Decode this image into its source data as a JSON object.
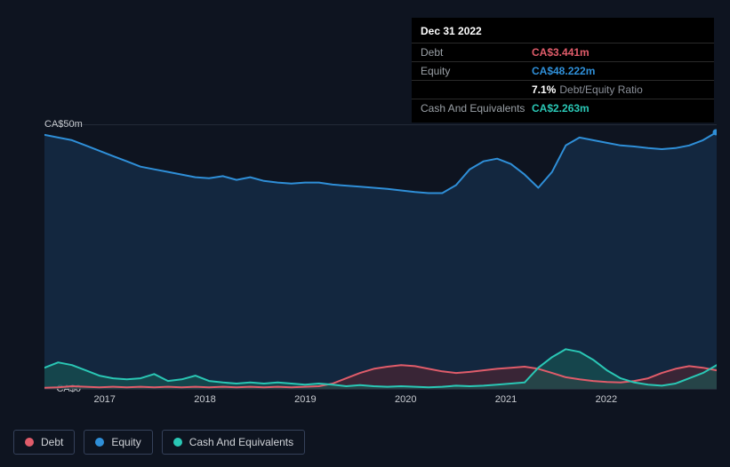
{
  "tooltip": {
    "date": "Dec 31 2022",
    "rows": {
      "debt": {
        "label": "Debt",
        "value": "CA$3.441m"
      },
      "equity": {
        "label": "Equity",
        "value": "CA$48.222m"
      },
      "ratio": {
        "label": "",
        "value": "7.1%",
        "suffix": "Debt/Equity Ratio"
      },
      "cash": {
        "label": "Cash And Equivalents",
        "value": "CA$2.263m"
      }
    }
  },
  "chart": {
    "type": "area",
    "background_color": "#0e1420",
    "grid_color": "#232a38",
    "ylim": [
      0,
      50
    ],
    "y_ticks": [
      {
        "v": 50,
        "label": "CA$50m"
      },
      {
        "v": 0,
        "label": "CA$0"
      }
    ],
    "x_years": [
      "2017",
      "2018",
      "2019",
      "2020",
      "2021",
      "2022"
    ],
    "n_points": 50,
    "series": {
      "equity": {
        "label": "Equity",
        "stroke": "#2f8fd8",
        "fill": "#17365a",
        "fill_opacity": 0.55,
        "line_width": 2,
        "data": [
          48,
          47.5,
          47,
          46,
          45,
          44,
          43,
          42,
          41.5,
          41,
          40.5,
          40,
          39.8,
          40.2,
          39.5,
          40,
          39.3,
          39,
          38.8,
          39,
          39,
          38.6,
          38.4,
          38.2,
          38,
          37.8,
          37.5,
          37.2,
          37,
          37,
          38.5,
          41.5,
          43,
          43.5,
          42.5,
          40.5,
          38,
          41,
          46,
          47.5,
          47,
          46.5,
          46,
          45.8,
          45.5,
          45.3,
          45.5,
          46,
          47,
          48.5
        ]
      },
      "cash": {
        "label": "Cash And Equivalents",
        "stroke": "#2ac7b5",
        "fill": "#175f58",
        "fill_opacity": 0.55,
        "line_width": 2,
        "data": [
          4,
          5,
          4.5,
          3.5,
          2.5,
          2,
          1.8,
          2,
          2.8,
          1.5,
          1.8,
          2.5,
          1.5,
          1.2,
          1,
          1.2,
          1,
          1.2,
          1,
          0.8,
          1,
          0.8,
          0.5,
          0.7,
          0.5,
          0.4,
          0.5,
          0.4,
          0.3,
          0.4,
          0.6,
          0.5,
          0.6,
          0.8,
          1,
          1.2,
          4,
          6,
          7.5,
          7,
          5.5,
          3.5,
          2,
          1.2,
          0.8,
          0.6,
          1,
          2,
          3,
          4.5
        ]
      },
      "debt": {
        "label": "Debt",
        "stroke": "#e05c6a",
        "fill": "#5a2530",
        "fill_opacity": 0.55,
        "line_width": 2,
        "data": [
          0.2,
          0.3,
          0.5,
          0.4,
          0.3,
          0.4,
          0.3,
          0.4,
          0.3,
          0.4,
          0.3,
          0.4,
          0.3,
          0.4,
          0.3,
          0.4,
          0.3,
          0.4,
          0.3,
          0.4,
          0.5,
          1,
          2,
          3,
          3.8,
          4.2,
          4.5,
          4.3,
          3.8,
          3.3,
          3,
          3.2,
          3.5,
          3.8,
          4,
          4.2,
          3.8,
          3,
          2.2,
          1.8,
          1.5,
          1.3,
          1.2,
          1.5,
          2,
          3,
          3.8,
          4.3,
          4,
          3.5
        ]
      }
    }
  },
  "legend": [
    {
      "key": "debt",
      "label": "Debt",
      "color": "#e05c6a"
    },
    {
      "key": "equity",
      "label": "Equity",
      "color": "#2f8fd8"
    },
    {
      "key": "cash",
      "label": "Cash And Equivalents",
      "color": "#2ac7b5"
    }
  ]
}
